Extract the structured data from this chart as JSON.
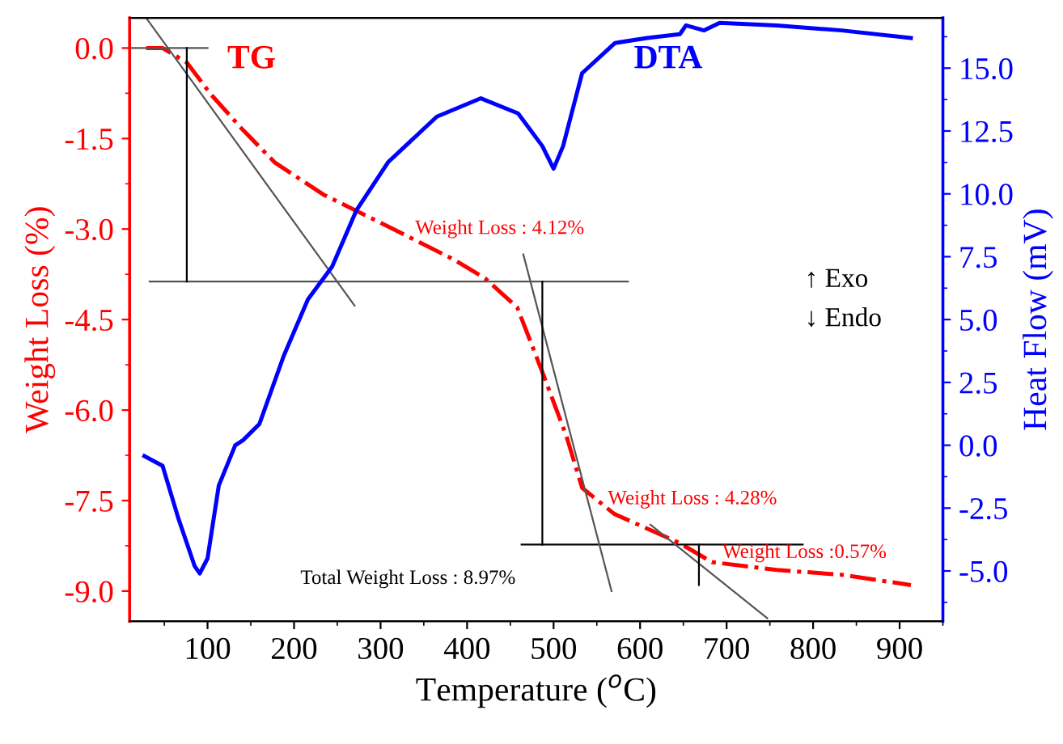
{
  "chart_data": {
    "type": "line",
    "xlabel": "Temperature ($^{o}$C)",
    "ylabel": "Weight Loss (%)",
    "y2label": "Heat Flow (mV)",
    "xlim": [
      10,
      950
    ],
    "xticks": [
      100,
      200,
      300,
      400,
      500,
      600,
      700,
      800,
      900
    ],
    "ylim": [
      -9.5,
      0.5
    ],
    "yticks": [
      {
        "value": -9.0,
        "label": "-9.0"
      },
      {
        "value": -7.5,
        "label": "-7.5"
      },
      {
        "value": -6.0,
        "label": "-6.0"
      },
      {
        "value": -4.5,
        "label": "-4.5"
      },
      {
        "value": -3.0,
        "label": "-3.0"
      },
      {
        "value": -1.5,
        "label": "-1.5"
      },
      {
        "value": 0.0,
        "label": "0.0"
      }
    ],
    "y2lim": [
      -7,
      17
    ],
    "y2ticks": [
      {
        "value": -5.0,
        "label": "-5.0"
      },
      {
        "value": -2.5,
        "label": "-2.5"
      },
      {
        "value": 0.0,
        "label": "0.0"
      },
      {
        "value": 2.5,
        "label": "2.5"
      },
      {
        "value": 5.0,
        "label": "5.0"
      },
      {
        "value": 7.5,
        "label": "7.5"
      },
      {
        "value": 10.0,
        "label": "10.0"
      },
      {
        "value": 12.5,
        "label": "12.5"
      },
      {
        "value": 15.0,
        "label": "15.0"
      }
    ],
    "grid": false,
    "legend": false,
    "series": [
      {
        "name": "TG",
        "color": "#ff0000",
        "line_style": "dashdot",
        "x": [
          29,
          48,
          76,
          104,
          141,
          178,
          234,
          309,
          384,
          421,
          458,
          487,
          515,
          533,
          570,
          645,
          683,
          758,
          833,
          913
        ],
        "values": [
          0,
          0,
          -0.24,
          -0.77,
          -1.36,
          -1.9,
          -2.43,
          -2.96,
          -3.5,
          -3.82,
          -4.3,
          -5.37,
          -6.44,
          -7.29,
          -7.72,
          -8.2,
          -8.52,
          -8.65,
          -8.73,
          -8.9
        ]
      },
      {
        "name": "DTA",
        "color": "#0000ff",
        "axis": "y2",
        "line_style": "solid",
        "x": [
          27,
          48,
          66,
          85,
          91,
          100,
          113,
          132,
          141,
          160,
          188,
          216,
          244,
          272,
          309,
          365,
          416,
          459,
          487,
          500,
          511,
          533,
          571,
          608,
          646,
          653,
          674,
          692,
          758,
          833,
          913
        ],
        "values": [
          -0.43,
          -0.82,
          -2.88,
          -4.8,
          -5.1,
          -4.5,
          -1.6,
          0.0,
          0.2,
          0.85,
          3.55,
          5.8,
          7.1,
          9.34,
          11.27,
          13.07,
          13.8,
          13.2,
          11.9,
          11.0,
          11.9,
          14.8,
          16.0,
          16.2,
          16.35,
          16.7,
          16.5,
          16.8,
          16.7,
          16.5,
          16.2
        ]
      },
      {
        "color": "#555555",
        "line_style": "solid",
        "x": [
          10,
          100
        ],
        "values": [
          0,
          0
        ]
      },
      {
        "color": "#555555",
        "line_style": "solid",
        "x": [
          33,
          586
        ],
        "values": [
          -3.87,
          -3.87
        ]
      },
      {
        "color": "#000000",
        "line_style": "solid",
        "x": [
          463,
          788
        ],
        "values": [
          -8.23,
          -8.23
        ]
      },
      {
        "color": "#555555",
        "line_style": "solid",
        "x": [
          30,
          270
        ],
        "values": [
          0.48,
          -4.27
        ]
      },
      {
        "color": "#555555",
        "line_style": "solid",
        "x": [
          465,
          567
        ],
        "values": [
          -3.42,
          -9.0
        ]
      },
      {
        "color": "#555555",
        "line_style": "solid",
        "x": [
          612,
          747
        ],
        "values": [
          -7.9,
          -9.45
        ]
      },
      {
        "color": "#000000",
        "line_style": "solid",
        "x": [
          76,
          76
        ],
        "values": [
          0,
          -3.87
        ]
      },
      {
        "color": "#000000",
        "line_style": "solid",
        "x": [
          487,
          487
        ],
        "values": [
          -3.87,
          -8.23
        ]
      },
      {
        "color": "#000000",
        "line_style": "solid",
        "x": [
          668,
          668
        ],
        "values": [
          -8.23,
          -8.9
        ]
      }
    ],
    "annotations": [
      "Weight Loss : 4.12%",
      "Weight Loss : 4.28%",
      "Weight Loss :0.57%",
      "Total Weight Loss : 8.97%",
      "↑ Exo",
      "↓ Endo"
    ]
  }
}
